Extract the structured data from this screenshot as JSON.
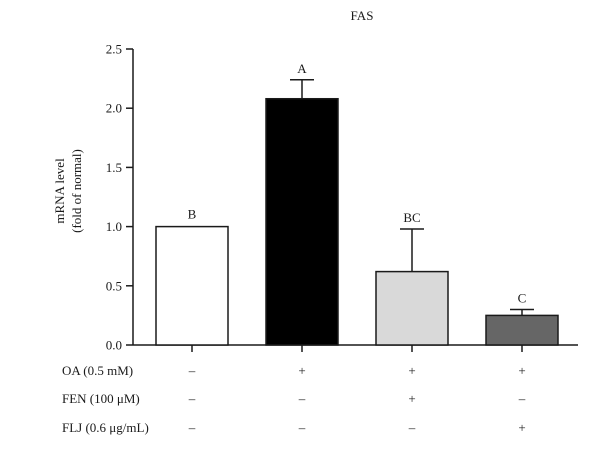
{
  "chart_data": {
    "type": "bar",
    "title": "FAS",
    "ylabel_lines": [
      "mRNA level",
      "(fold of normal)"
    ],
    "ylim": [
      0,
      2.5
    ],
    "yticks": [
      0.0,
      0.5,
      1.0,
      1.5,
      2.0,
      2.5
    ],
    "ytick_labels": [
      "0.0",
      "0.5",
      "1.0",
      "1.5",
      "2.0",
      "2.5"
    ],
    "grid": false,
    "legend": "none",
    "series": [
      {
        "values": [
          1.0,
          2.08,
          0.62,
          0.25
        ],
        "errors": [
          0.0,
          0.16,
          0.36,
          0.05
        ],
        "significance": [
          "B",
          "A",
          "BC",
          "C"
        ],
        "fills": [
          "#ffffff",
          "#000000",
          "#d9d9d9",
          "#666666"
        ]
      }
    ],
    "conditions": [
      {
        "label": "OA (0.5 mM)",
        "signs": [
          "–",
          "+",
          "+",
          "+"
        ]
      },
      {
        "label": "FEN (100 μM)",
        "signs": [
          "–",
          "–",
          "+",
          "–"
        ]
      },
      {
        "label": "FLJ (0.6 μg/mL)",
        "signs": [
          "–",
          "–",
          "–",
          "+"
        ]
      }
    ]
  }
}
